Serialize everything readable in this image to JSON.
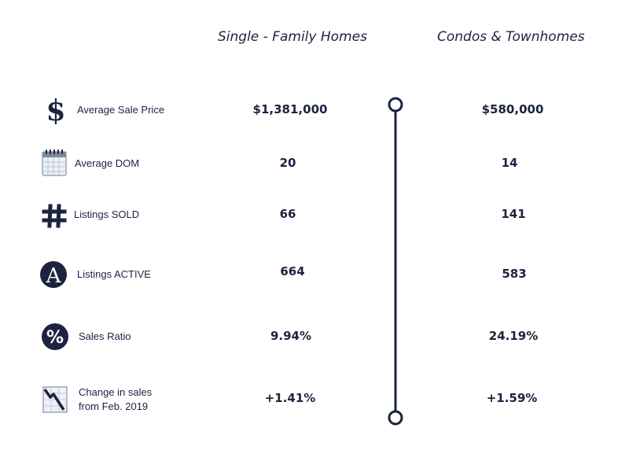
{
  "columns": {
    "single_family": "Single - Family Homes",
    "condos": "Condos & Townhomes"
  },
  "colors": {
    "navy": "#1c2340",
    "icon_gray": "#9aa6b8"
  },
  "rows": [
    {
      "label": "Average Sale Price",
      "icon": "dollar-sign-icon",
      "single": "$1,381,000",
      "condo": "$580,000"
    },
    {
      "label": "Average DOM",
      "icon": "calendar-icon",
      "single": "20",
      "condo": "14"
    },
    {
      "label": "Listings SOLD",
      "icon": "hashtag-icon",
      "single": "66",
      "condo": "141"
    },
    {
      "label": "Listings ACTIVE",
      "icon": "letter-a-circle-icon",
      "single": "664",
      "condo": "583"
    },
    {
      "label": "Sales Ratio",
      "icon": "percent-circle-icon",
      "single": "9.94%",
      "condo": "24.19%"
    },
    {
      "label_line1": "Change in sales",
      "label_line2": "from Feb. 2019",
      "icon": "trend-down-chart-icon",
      "single": "+1.41%",
      "condo": "+1.59%"
    }
  ]
}
